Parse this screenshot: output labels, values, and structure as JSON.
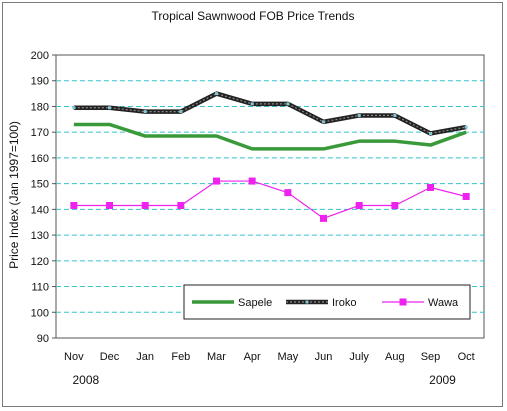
{
  "chart_data": {
    "type": "line",
    "title": "Tropical Sawnwood FOB Price Trends",
    "ylabel": "Price Index (Jan 1997=100)",
    "xlabel": "",
    "ylim": [
      90,
      200
    ],
    "yticks": [
      90,
      100,
      110,
      120,
      130,
      140,
      150,
      160,
      170,
      180,
      190,
      200
    ],
    "grid": true,
    "legend_position": "bottom-right",
    "categories": [
      "Nov",
      "Dec",
      "Jan",
      "Feb",
      "Mar",
      "Apr",
      "May",
      "Jun",
      "July",
      "Aug",
      "Sep",
      "Oct"
    ],
    "year_labels": [
      {
        "category": "Nov",
        "label": "2008"
      },
      {
        "category": "Sep",
        "label": "2009"
      }
    ],
    "series": [
      {
        "name": "Sapele",
        "color": "#3a9a3a",
        "marker": "none",
        "values": [
          173,
          173,
          168.5,
          168.5,
          168.5,
          163.5,
          163.5,
          163.5,
          166.5,
          166.5,
          165,
          170
        ]
      },
      {
        "name": "Iroko",
        "color": "#222222",
        "marker": "small-square",
        "marker_color": "#7fc9d6",
        "values": [
          179.5,
          179.5,
          178,
          178,
          185,
          181,
          181,
          174,
          176.5,
          176.5,
          169.5,
          172
        ]
      },
      {
        "name": "Wawa",
        "legend_label": "Wawa",
        "color": "#ee22ee",
        "marker": "square",
        "values": [
          141.5,
          141.5,
          141.5,
          141.5,
          151,
          151,
          146.5,
          136.5,
          141.5,
          141.5,
          148.5,
          145
        ]
      }
    ]
  }
}
